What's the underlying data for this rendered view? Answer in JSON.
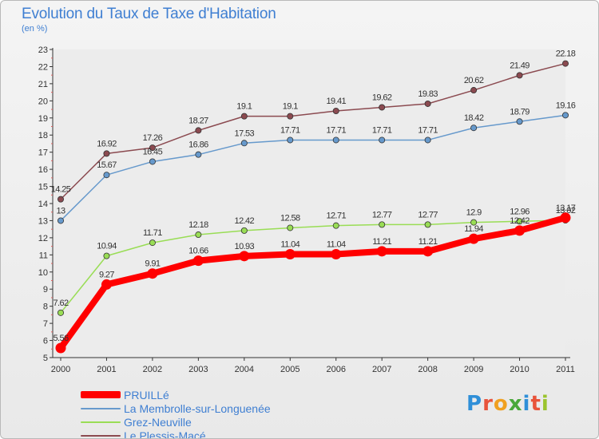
{
  "title": "Evolution du Taux de Taxe d'Habitation",
  "subtitle": "(en %)",
  "brand": {
    "letters": [
      "P",
      "r",
      "o",
      "x",
      "i",
      "t",
      "i"
    ],
    "colors": [
      "#2f8fd8",
      "#e8533b",
      "#f0a020",
      "#4aa83a",
      "#2f8fd8",
      "#e8533b",
      "#9bc42e"
    ]
  },
  "chart_data": {
    "type": "line",
    "x": [
      "2000",
      "2001",
      "2002",
      "2003",
      "2004",
      "2005",
      "2006",
      "2007",
      "2008",
      "2009",
      "2010",
      "2011"
    ],
    "ylim": [
      5,
      23
    ],
    "yticks": [
      "5",
      "6",
      "7",
      "8",
      "9",
      "10",
      "11",
      "12",
      "13",
      "14",
      "15",
      "16",
      "17",
      "18",
      "19",
      "20",
      "21",
      "22",
      "23"
    ],
    "grid": false,
    "legend_position": "bottom-left",
    "series": [
      {
        "name": "PRUILLé",
        "color": "#ff0000",
        "values": [
          5.56,
          9.27,
          9.91,
          10.66,
          10.93,
          11.04,
          11.04,
          11.21,
          11.21,
          11.94,
          12.42,
          13.17
        ],
        "labels": [
          "5.56",
          "9.27",
          "9.91",
          "10.66",
          "10.93",
          "11.04",
          "11.04",
          "11.21",
          "11.21",
          "11.94",
          "12.42",
          "13.17"
        ]
      },
      {
        "name": "La Membrolle-sur-Longuenée",
        "color": "#6699cc",
        "values": [
          13,
          15.67,
          16.45,
          16.86,
          17.53,
          17.71,
          17.71,
          17.71,
          17.71,
          18.42,
          18.79,
          19.16
        ],
        "labels": [
          "13",
          "15.67",
          "16.45",
          "16.86",
          "17.53",
          "17.71",
          "17.71",
          "17.71",
          "17.71",
          "18.42",
          "18.79",
          "19.16"
        ]
      },
      {
        "name": "Grez-Neuville",
        "color": "#99dd55",
        "values": [
          7.62,
          10.94,
          11.71,
          12.18,
          12.42,
          12.58,
          12.71,
          12.77,
          12.77,
          12.9,
          12.96,
          13.02
        ],
        "labels": [
          "7.62",
          "10.94",
          "11.71",
          "12.18",
          "12.42",
          "12.58",
          "12.71",
          "12.77",
          "12.77",
          "12.9",
          "12.96",
          "13.02"
        ]
      },
      {
        "name": "Le Plessis-Macé",
        "color": "#8b4a50",
        "values": [
          14.25,
          16.92,
          17.26,
          18.27,
          19.1,
          19.1,
          19.41,
          19.62,
          19.83,
          20.62,
          21.49,
          22.18
        ],
        "labels": [
          "14.25",
          "16.92",
          "17.26",
          "18.27",
          "19.1",
          "19.1",
          "19.41",
          "19.62",
          "19.83",
          "20.62",
          "21.49",
          "22.18"
        ]
      }
    ]
  }
}
